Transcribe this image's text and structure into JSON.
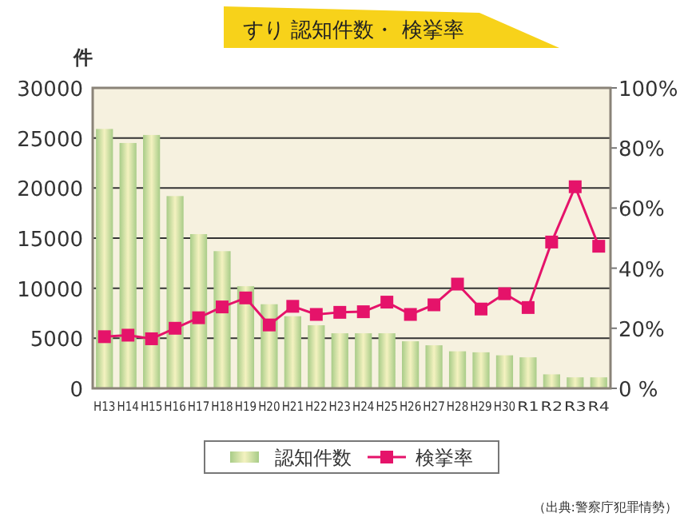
{
  "chart_data": {
    "type": "bar",
    "title": "すり 認知件数・ 検挙率",
    "ylabel": "件",
    "categories": [
      "H13",
      "H14",
      "H15",
      "H16",
      "H17",
      "H18",
      "H19",
      "H20",
      "H21",
      "H22",
      "H23",
      "H24",
      "H25",
      "H26",
      "H27",
      "H28",
      "H29",
      "H30",
      "R1",
      "R2",
      "R3",
      "R4"
    ],
    "series": [
      {
        "name": "認知件数",
        "color": "#a8cc88",
        "values": [
          25900,
          24500,
          25300,
          19200,
          15400,
          13700,
          10200,
          8400,
          7200,
          6300,
          5500,
          5500,
          5500,
          4700,
          4300,
          3700,
          3600,
          3300,
          3100,
          1400,
          1100,
          1100
        ]
      },
      {
        "name": "検挙率",
        "type": "line",
        "axis": "y2",
        "color": "#e5136a",
        "marker": "square",
        "values": [
          17.2,
          17.7,
          16.5,
          20.0,
          23.5,
          27.1,
          30.1,
          21.1,
          27.3,
          24.6,
          25.3,
          25.5,
          28.7,
          24.6,
          27.8,
          34.7,
          26.4,
          31.5,
          26.9,
          48.7,
          67.1,
          47.3
        ]
      }
    ],
    "ylim": [
      0,
      30000
    ],
    "yticks": [
      0,
      5000,
      10000,
      15000,
      20000,
      25000,
      30000
    ],
    "y2lim": [
      0,
      100
    ],
    "y2ticks": [
      {
        "value": 0,
        "label": "0 %"
      },
      {
        "value": 20,
        "label": "20%"
      },
      {
        "value": 40,
        "label": "40%"
      },
      {
        "value": 60,
        "label": "60%"
      },
      {
        "value": 80,
        "label": "80%"
      },
      {
        "value": 100,
        "label": "100%"
      }
    ],
    "grid": "y",
    "legend": "bottom",
    "annotations": [
      "（出典:警察庁犯罪情勢）"
    ]
  }
}
